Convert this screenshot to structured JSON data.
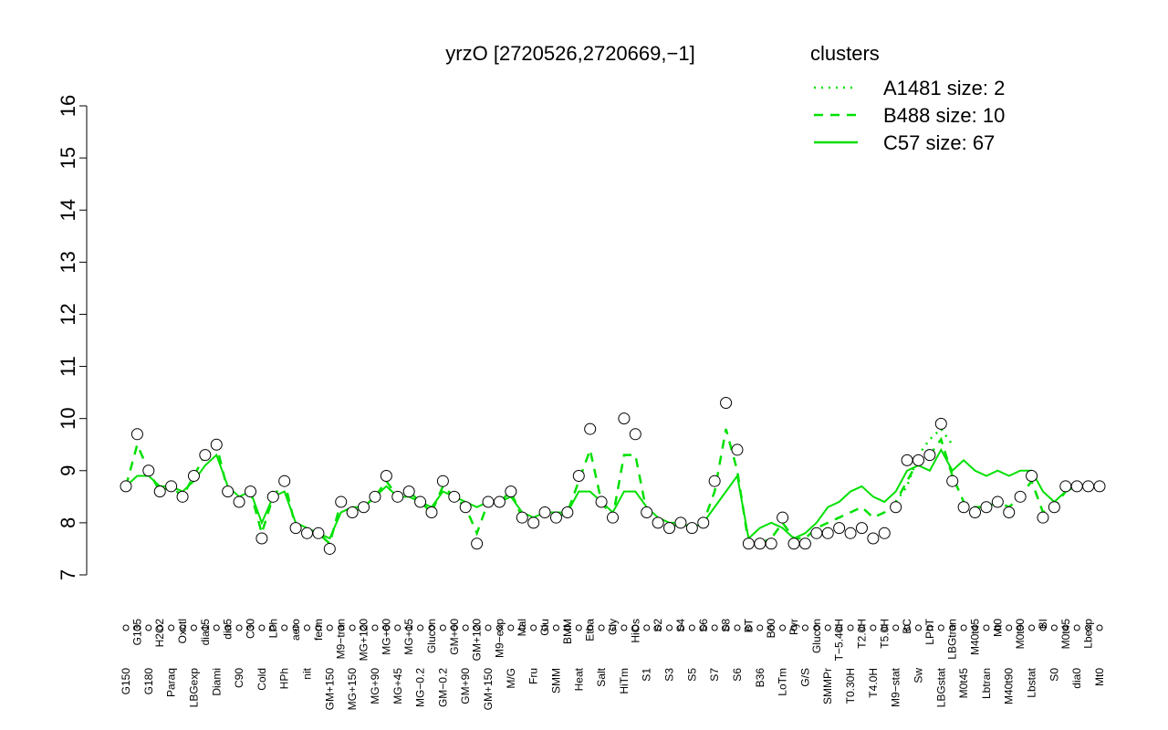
{
  "chart_data": {
    "type": "line",
    "title": "yrzO [2720526,2720669,−1]",
    "legend_title": "clusters",
    "legend_color": "#00e000",
    "legend_position": "top-right",
    "ylim": [
      7,
      16
    ],
    "yticks": [
      7,
      8,
      9,
      10,
      11,
      12,
      13,
      14,
      15,
      16
    ],
    "categories": [
      "G150",
      "G135",
      "G180",
      "H2O2",
      "Paraq",
      "Oxctl",
      "LBGexp",
      "dia15",
      "Diami",
      "dia5",
      "C90",
      "C30",
      "Cold",
      "LPh",
      "HPh",
      "aero",
      "nit",
      "ferm",
      "GM+150",
      "M9−tran",
      "MG+150",
      "MG+120",
      "MG+90",
      "MG+60",
      "MG+45",
      "MG+15",
      "MG−0.2",
      "Glucon",
      "GM−0.2",
      "GM+60",
      "GM+90",
      "GM+120",
      "GM+150",
      "M9−exp",
      "M/G",
      "Mal",
      "Fru",
      "Glu",
      "SMM",
      "BMM",
      "Heat",
      "Etha",
      "Salt",
      "Gly",
      "HiTm",
      "HiOs",
      "S1",
      "S2",
      "S3",
      "S4",
      "S5",
      "S6",
      "S7",
      "S8",
      "S6",
      "BT",
      "B36",
      "B60",
      "LoTm",
      "Pyr",
      "G/S",
      "Glucon",
      "SMMPr",
      "T−5.40H",
      "T0.30H",
      "T2.0H",
      "T4.0H",
      "T5.0H",
      "M9−stat",
      "BC",
      "Sw",
      "LPhT",
      "LBGstat",
      "LBGtran",
      "M0t45",
      "M40t45",
      "Lbtran",
      "Mt0",
      "M40t90",
      "M0t90",
      "Lbstat",
      "BI",
      "S0",
      "M0t45",
      "dia0",
      "Lbexp",
      "Mt0"
    ],
    "values": [
      8.7,
      9.7,
      9.0,
      8.6,
      8.7,
      8.5,
      8.9,
      9.3,
      9.5,
      8.6,
      8.4,
      8.6,
      7.7,
      8.5,
      8.8,
      7.9,
      7.8,
      7.8,
      7.5,
      8.4,
      8.2,
      8.3,
      8.5,
      8.9,
      8.5,
      8.6,
      8.4,
      8.2,
      8.8,
      8.5,
      8.3,
      7.6,
      8.4,
      8.4,
      8.6,
      8.1,
      8.0,
      8.2,
      8.1,
      8.2,
      8.9,
      9.8,
      8.4,
      8.1,
      10.0,
      9.7,
      8.2,
      8.0,
      7.9,
      8.0,
      7.9,
      8.0,
      8.8,
      10.3,
      9.4,
      7.6,
      7.6,
      7.6,
      8.1,
      7.6,
      7.6,
      7.8,
      7.8,
      7.9,
      7.8,
      7.9,
      7.7,
      7.8,
      8.3,
      9.2,
      9.2,
      9.3,
      9.9,
      8.8,
      8.3,
      8.2,
      8.3,
      8.4,
      8.2,
      8.5,
      8.9,
      8.1,
      8.3,
      8.7,
      8.7,
      8.7,
      8.7
    ],
    "series": [
      {
        "name": "A1481 size: 2",
        "color": "#00e000",
        "dash": "dotted",
        "values": [
          null,
          null,
          null,
          null,
          null,
          null,
          null,
          null,
          null,
          null,
          null,
          null,
          null,
          null,
          null,
          null,
          null,
          null,
          null,
          null,
          null,
          null,
          null,
          null,
          null,
          null,
          null,
          null,
          null,
          null,
          null,
          null,
          null,
          null,
          null,
          null,
          null,
          null,
          null,
          null,
          null,
          null,
          null,
          null,
          null,
          null,
          null,
          null,
          null,
          null,
          null,
          null,
          null,
          null,
          null,
          null,
          null,
          null,
          null,
          null,
          null,
          null,
          null,
          null,
          null,
          null,
          null,
          null,
          8.4,
          8.7,
          9.3,
          9.6,
          9.8,
          9.5,
          null,
          null,
          null,
          null,
          null,
          null,
          null,
          null,
          null,
          null,
          null,
          null,
          null
        ]
      },
      {
        "name": "B488 size: 10",
        "color": "#00e000",
        "dash": "dashed",
        "values": [
          8.7,
          9.5,
          9.0,
          8.6,
          8.7,
          8.5,
          8.9,
          9.3,
          9.5,
          8.6,
          8.4,
          8.6,
          7.8,
          8.5,
          8.8,
          7.9,
          7.8,
          7.8,
          7.6,
          8.4,
          8.2,
          8.3,
          8.5,
          8.8,
          8.5,
          8.6,
          8.4,
          8.2,
          8.7,
          8.5,
          8.3,
          7.8,
          8.4,
          8.4,
          8.6,
          8.1,
          8.0,
          8.2,
          8.1,
          8.2,
          8.8,
          9.4,
          8.4,
          8.1,
          9.3,
          9.3,
          8.2,
          8.0,
          7.9,
          8.0,
          7.9,
          8.0,
          8.6,
          9.8,
          9.0,
          7.6,
          7.6,
          7.7,
          8.0,
          7.7,
          7.7,
          7.9,
          8.0,
          8.1,
          8.2,
          8.3,
          8.1,
          8.2,
          8.4,
          8.8,
          9.2,
          9.3,
          9.6,
          8.9,
          8.4,
          8.3,
          8.3,
          8.4,
          8.3,
          8.5,
          8.8,
          8.2,
          8.3,
          8.6,
          8.7,
          8.7,
          8.7
        ]
      },
      {
        "name": "C57 size: 67",
        "color": "#00e000",
        "dash": "solid",
        "values": [
          8.7,
          8.9,
          8.9,
          8.7,
          8.7,
          8.6,
          8.8,
          9.1,
          9.3,
          8.7,
          8.5,
          8.6,
          8.0,
          8.5,
          8.6,
          8.0,
          7.9,
          7.8,
          7.7,
          8.2,
          8.3,
          8.3,
          8.5,
          8.7,
          8.5,
          8.5,
          8.4,
          8.3,
          8.6,
          8.5,
          8.4,
          8.3,
          8.4,
          8.4,
          8.5,
          8.2,
          8.1,
          8.2,
          8.2,
          8.2,
          8.6,
          8.6,
          8.4,
          8.2,
          8.6,
          8.6,
          8.3,
          8.1,
          8.0,
          8.0,
          7.9,
          8.0,
          8.3,
          8.6,
          8.9,
          7.7,
          7.9,
          8.0,
          7.9,
          7.7,
          7.8,
          8.0,
          8.3,
          8.4,
          8.6,
          8.7,
          8.5,
          8.4,
          8.6,
          9.0,
          9.1,
          9.0,
          9.4,
          9.0,
          9.2,
          9.0,
          8.9,
          9.0,
          8.9,
          9.0,
          9.0,
          8.6,
          8.4,
          8.6,
          8.7,
          8.7,
          8.7
        ]
      }
    ]
  }
}
